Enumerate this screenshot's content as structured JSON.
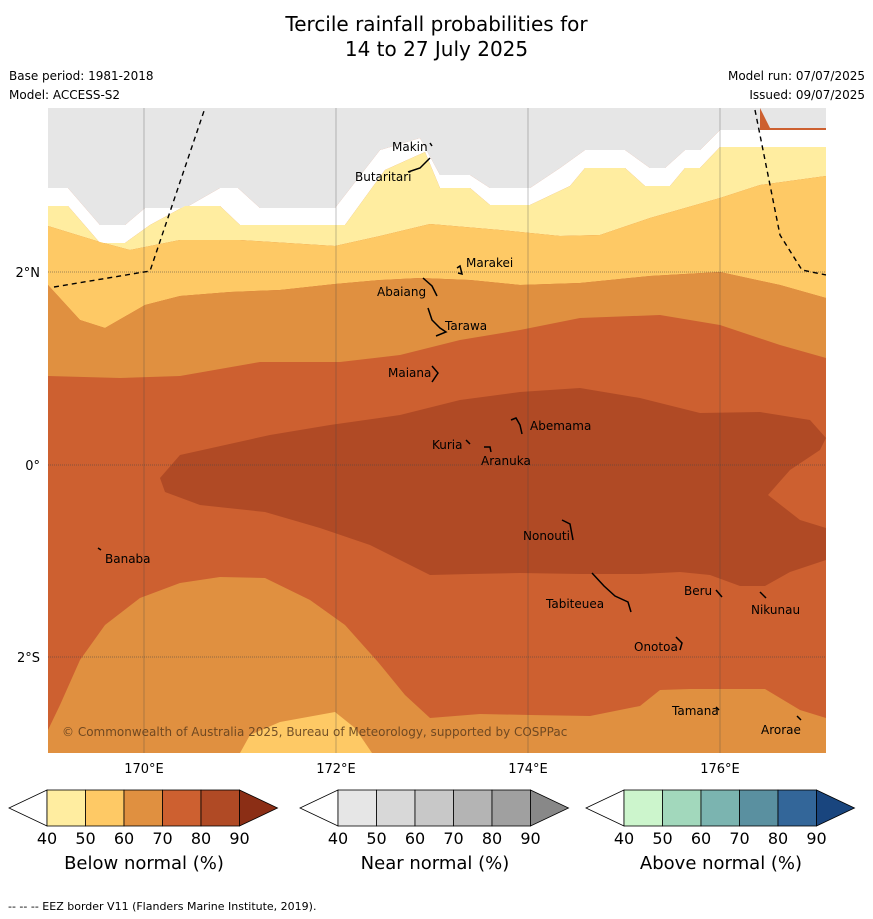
{
  "title": {
    "line1": "Tercile rainfall probabilities for",
    "line2": "14 to 27 July 2025"
  },
  "meta": {
    "base_period": "Base period: 1981-2018",
    "model": "Model: ACCESS-S2",
    "model_run": "Model run: 07/07/2025",
    "issued": "Issued: 09/07/2025"
  },
  "map": {
    "lon_labels": [
      "170°E",
      "172°E",
      "174°E",
      "176°E"
    ],
    "lat_labels": [
      "2°N",
      "0°",
      "2°S"
    ],
    "copyright": "© Commonwealth of Australia 2025, Bureau of Meteorology, supported by COSPPac",
    "islands": [
      {
        "name": "Makin"
      },
      {
        "name": "Butaritari"
      },
      {
        "name": "Marakei"
      },
      {
        "name": "Abaiang"
      },
      {
        "name": "Tarawa"
      },
      {
        "name": "Maiana"
      },
      {
        "name": "Abemama"
      },
      {
        "name": "Kuria"
      },
      {
        "name": "Aranuka"
      },
      {
        "name": "Nonouti"
      },
      {
        "name": "Banaba"
      },
      {
        "name": "Tabiteuea"
      },
      {
        "name": "Beru"
      },
      {
        "name": "Nikunau"
      },
      {
        "name": "Onotoa"
      },
      {
        "name": "Tamana"
      },
      {
        "name": "Arorae"
      }
    ]
  },
  "colorbars": [
    {
      "title": "Below normal (%)",
      "ticks": [
        "40",
        "50",
        "60",
        "70",
        "80",
        "90"
      ],
      "colors": [
        "#ffffff",
        "#ffeda0",
        "#fec965",
        "#e09040",
        "#cd6030",
        "#b04a25",
        "#8b2e15"
      ]
    },
    {
      "title": "Near normal (%)",
      "ticks": [
        "40",
        "50",
        "60",
        "70",
        "80",
        "90"
      ],
      "colors": [
        "#ffffff",
        "#e6e6e6",
        "#d8d8d8",
        "#c8c8c8",
        "#b4b4b4",
        "#a0a0a0",
        "#888888"
      ]
    },
    {
      "title": "Above normal (%)",
      "ticks": [
        "40",
        "50",
        "60",
        "70",
        "80",
        "90"
      ],
      "colors": [
        "#ffffff",
        "#ccf5cc",
        "#a2d8bc",
        "#7bb4b0",
        "#5a90a0",
        "#336699",
        "#19457e"
      ]
    }
  ],
  "footer": "--  --  -- EEZ border V11 (Flanders Marine Institute, 2019)."
}
